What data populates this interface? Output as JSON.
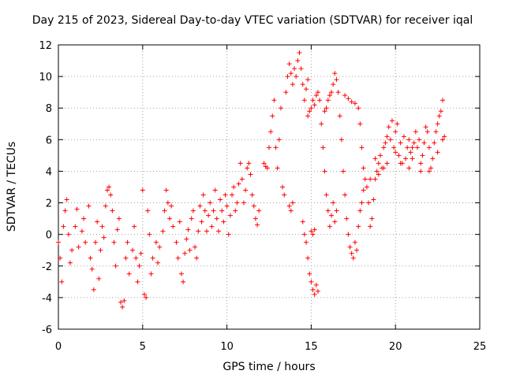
{
  "chart_data": {
    "type": "scatter",
    "title": "Day 215 of 2023, Sidereal Day-to-day VTEC variation (SDTVAR) for receiver iqal",
    "xlabel": "GPS time / hours",
    "ylabel": "SDTVAR / TECUs",
    "xlim": [
      0,
      25
    ],
    "ylim": [
      -6,
      12
    ],
    "xticks": [
      0,
      5,
      10,
      15,
      20,
      25
    ],
    "yticks": [
      -6,
      -4,
      -2,
      0,
      2,
      4,
      6,
      8,
      10,
      12
    ],
    "grid": true,
    "marker": "+",
    "color": "#ff0000",
    "series": [
      {
        "name": "iqal",
        "points": [
          [
            0.0,
            -0.5
          ],
          [
            0.1,
            -1.5
          ],
          [
            0.2,
            -3.0
          ],
          [
            0.3,
            0.5
          ],
          [
            0.4,
            1.5
          ],
          [
            0.5,
            2.2
          ],
          [
            0.6,
            0.0
          ],
          [
            0.7,
            -1.8
          ],
          [
            0.8,
            -1.0
          ],
          [
            1.0,
            0.5
          ],
          [
            1.1,
            1.6
          ],
          [
            1.2,
            -0.8
          ],
          [
            1.4,
            0.2
          ],
          [
            1.5,
            1.0
          ],
          [
            1.6,
            -0.5
          ],
          [
            1.8,
            1.8
          ],
          [
            1.9,
            -1.5
          ],
          [
            2.0,
            -2.2
          ],
          [
            2.1,
            -3.5
          ],
          [
            2.2,
            -0.5
          ],
          [
            2.3,
            0.8
          ],
          [
            2.4,
            -2.8
          ],
          [
            2.5,
            -1.0
          ],
          [
            2.6,
            0.5
          ],
          [
            2.7,
            -0.2
          ],
          [
            2.8,
            1.8
          ],
          [
            2.9,
            2.8
          ],
          [
            3.0,
            3.0
          ],
          [
            3.1,
            2.5
          ],
          [
            3.2,
            1.5
          ],
          [
            3.3,
            -0.5
          ],
          [
            3.4,
            -2.0
          ],
          [
            3.5,
            0.3
          ],
          [
            3.6,
            1.0
          ],
          [
            3.7,
            -4.3
          ],
          [
            3.8,
            -4.6
          ],
          [
            3.9,
            -4.2
          ],
          [
            4.0,
            -1.5
          ],
          [
            4.1,
            -0.5
          ],
          [
            4.2,
            -2.5
          ],
          [
            4.4,
            -1.0
          ],
          [
            4.5,
            0.5
          ],
          [
            4.6,
            -1.5
          ],
          [
            4.7,
            -3.0
          ],
          [
            4.8,
            -2.0
          ],
          [
            4.9,
            -1.2
          ],
          [
            5.0,
            2.8
          ],
          [
            5.1,
            -3.8
          ],
          [
            5.2,
            -4.0
          ],
          [
            5.3,
            1.5
          ],
          [
            5.4,
            0.0
          ],
          [
            5.5,
            -2.5
          ],
          [
            5.6,
            -1.5
          ],
          [
            5.8,
            -0.5
          ],
          [
            5.9,
            -1.8
          ],
          [
            6.0,
            -0.8
          ],
          [
            6.2,
            0.2
          ],
          [
            6.3,
            1.5
          ],
          [
            6.4,
            2.8
          ],
          [
            6.5,
            2.0
          ],
          [
            6.6,
            1.0
          ],
          [
            6.7,
            1.8
          ],
          [
            6.8,
            0.5
          ],
          [
            7.0,
            -0.5
          ],
          [
            7.1,
            -1.5
          ],
          [
            7.2,
            0.8
          ],
          [
            7.3,
            -2.5
          ],
          [
            7.4,
            -3.0
          ],
          [
            7.5,
            -1.2
          ],
          [
            7.6,
            -0.3
          ],
          [
            7.7,
            0.3
          ],
          [
            7.8,
            -1.0
          ],
          [
            7.9,
            1.0
          ],
          [
            8.0,
            1.5
          ],
          [
            8.1,
            -0.8
          ],
          [
            8.2,
            -1.5
          ],
          [
            8.3,
            0.2
          ],
          [
            8.4,
            1.8
          ],
          [
            8.5,
            0.8
          ],
          [
            8.6,
            2.5
          ],
          [
            8.7,
            1.5
          ],
          [
            8.8,
            0.2
          ],
          [
            8.9,
            1.2
          ],
          [
            9.0,
            2.0
          ],
          [
            9.1,
            0.5
          ],
          [
            9.2,
            1.5
          ],
          [
            9.3,
            2.8
          ],
          [
            9.4,
            1.0
          ],
          [
            9.5,
            0.2
          ],
          [
            9.6,
            2.2
          ],
          [
            9.7,
            1.5
          ],
          [
            9.8,
            0.8
          ],
          [
            9.9,
            2.5
          ],
          [
            10.0,
            1.8
          ],
          [
            10.1,
            0.0
          ],
          [
            10.2,
            1.2
          ],
          [
            10.3,
            2.5
          ],
          [
            10.4,
            3.0
          ],
          [
            10.5,
            1.5
          ],
          [
            10.6,
            2.0
          ],
          [
            10.7,
            3.2
          ],
          [
            10.8,
            4.5
          ],
          [
            10.9,
            3.5
          ],
          [
            11.0,
            2.0
          ],
          [
            11.1,
            2.8
          ],
          [
            11.2,
            4.2
          ],
          [
            11.3,
            4.5
          ],
          [
            11.4,
            3.8
          ],
          [
            11.5,
            2.5
          ],
          [
            11.6,
            1.8
          ],
          [
            11.7,
            1.0
          ],
          [
            11.8,
            0.6
          ],
          [
            11.9,
            1.5
          ],
          [
            12.2,
            4.5
          ],
          [
            12.3,
            4.3
          ],
          [
            12.4,
            4.2
          ],
          [
            12.5,
            5.5
          ],
          [
            12.6,
            6.5
          ],
          [
            12.7,
            7.5
          ],
          [
            12.8,
            8.5
          ],
          [
            12.9,
            5.5
          ],
          [
            13.0,
            4.2
          ],
          [
            13.1,
            6.0
          ],
          [
            13.2,
            8.0
          ],
          [
            13.3,
            3.0
          ],
          [
            13.4,
            2.5
          ],
          [
            13.5,
            9.0
          ],
          [
            13.6,
            10.0
          ],
          [
            13.7,
            10.8
          ],
          [
            13.8,
            10.2
          ],
          [
            13.9,
            9.5
          ],
          [
            14.0,
            10.5
          ],
          [
            14.1,
            10.0
          ],
          [
            14.2,
            11.0
          ],
          [
            14.3,
            11.5
          ],
          [
            14.4,
            10.5
          ],
          [
            14.5,
            9.5
          ],
          [
            14.6,
            8.5
          ],
          [
            14.7,
            9.2
          ],
          [
            14.8,
            9.8
          ],
          [
            13.8,
            1.5
          ],
          [
            13.9,
            2.0
          ],
          [
            13.7,
            1.8
          ],
          [
            14.5,
            0.8
          ],
          [
            14.6,
            0.0
          ],
          [
            14.7,
            -0.5
          ],
          [
            14.8,
            -1.5
          ],
          [
            14.9,
            -2.5
          ],
          [
            15.0,
            -3.0
          ],
          [
            15.1,
            -3.5
          ],
          [
            15.2,
            -3.8
          ],
          [
            15.3,
            -3.2
          ],
          [
            15.4,
            -3.6
          ],
          [
            15.0,
            0.2
          ],
          [
            15.1,
            0.0
          ],
          [
            15.2,
            0.3
          ],
          [
            14.8,
            7.5
          ],
          [
            14.9,
            7.8
          ],
          [
            15.0,
            8.0
          ],
          [
            15.1,
            8.5
          ],
          [
            15.2,
            8.2
          ],
          [
            15.3,
            8.8
          ],
          [
            15.4,
            9.0
          ],
          [
            15.5,
            8.5
          ],
          [
            15.6,
            7.0
          ],
          [
            15.7,
            5.5
          ],
          [
            15.8,
            4.0
          ],
          [
            15.9,
            2.5
          ],
          [
            16.0,
            1.5
          ],
          [
            16.1,
            0.5
          ],
          [
            16.2,
            1.2
          ],
          [
            16.3,
            2.0
          ],
          [
            16.4,
            0.8
          ],
          [
            16.5,
            1.5
          ],
          [
            15.8,
            7.8
          ],
          [
            15.9,
            8.0
          ],
          [
            16.0,
            8.5
          ],
          [
            16.1,
            8.8
          ],
          [
            16.2,
            9.0
          ],
          [
            16.3,
            9.5
          ],
          [
            16.4,
            10.2
          ],
          [
            16.5,
            9.8
          ],
          [
            16.6,
            9.0
          ],
          [
            16.7,
            7.5
          ],
          [
            16.8,
            6.0
          ],
          [
            16.9,
            4.0
          ],
          [
            17.0,
            2.5
          ],
          [
            17.1,
            1.0
          ],
          [
            17.2,
            0.0
          ],
          [
            17.3,
            -0.8
          ],
          [
            17.4,
            -1.2
          ],
          [
            17.5,
            -1.5
          ],
          [
            17.6,
            -0.5
          ],
          [
            17.7,
            -1.0
          ],
          [
            17.8,
            0.5
          ],
          [
            17.9,
            1.5
          ],
          [
            18.0,
            2.0
          ],
          [
            18.1,
            2.8
          ],
          [
            17.0,
            8.8
          ],
          [
            17.2,
            8.6
          ],
          [
            17.4,
            8.4
          ],
          [
            17.6,
            8.3
          ],
          [
            17.8,
            8.0
          ],
          [
            17.9,
            7.0
          ],
          [
            18.0,
            5.5
          ],
          [
            18.1,
            4.2
          ],
          [
            18.2,
            3.5
          ],
          [
            18.3,
            3.0
          ],
          [
            18.4,
            2.0
          ],
          [
            18.5,
            0.5
          ],
          [
            18.6,
            1.0
          ],
          [
            18.7,
            2.2
          ],
          [
            18.8,
            3.5
          ],
          [
            18.9,
            4.0
          ],
          [
            19.0,
            4.5
          ],
          [
            19.1,
            5.0
          ],
          [
            19.2,
            4.2
          ],
          [
            19.3,
            5.5
          ],
          [
            19.4,
            5.8
          ],
          [
            19.5,
            6.2
          ],
          [
            19.6,
            6.8
          ],
          [
            19.7,
            6.0
          ],
          [
            19.8,
            7.2
          ],
          [
            19.9,
            5.5
          ],
          [
            20.0,
            6.5
          ],
          [
            20.1,
            7.0
          ],
          [
            20.2,
            5.0
          ],
          [
            20.3,
            5.8
          ],
          [
            20.4,
            4.5
          ],
          [
            20.5,
            6.2
          ],
          [
            20.6,
            4.8
          ],
          [
            20.7,
            5.5
          ],
          [
            20.8,
            6.0
          ],
          [
            20.9,
            5.2
          ],
          [
            21.0,
            4.8
          ],
          [
            21.1,
            5.8
          ],
          [
            21.2,
            6.5
          ],
          [
            21.3,
            5.5
          ],
          [
            21.4,
            6.0
          ],
          [
            21.5,
            4.5
          ],
          [
            21.6,
            5.0
          ],
          [
            21.7,
            5.8
          ],
          [
            21.8,
            6.8
          ],
          [
            21.9,
            6.5
          ],
          [
            22.0,
            5.5
          ],
          [
            22.1,
            4.2
          ],
          [
            22.2,
            4.8
          ],
          [
            22.3,
            5.8
          ],
          [
            22.4,
            6.5
          ],
          [
            22.5,
            7.0
          ],
          [
            22.6,
            7.5
          ],
          [
            22.7,
            7.8
          ],
          [
            22.8,
            8.5
          ],
          [
            22.9,
            6.2
          ],
          [
            18.5,
            3.5
          ],
          [
            18.8,
            4.8
          ],
          [
            19.0,
            3.8
          ],
          [
            19.3,
            4.2
          ],
          [
            19.5,
            4.5
          ],
          [
            20.0,
            5.2
          ],
          [
            20.3,
            4.5
          ],
          [
            20.8,
            4.2
          ],
          [
            21.0,
            5.5
          ],
          [
            21.5,
            4.0
          ],
          [
            22.0,
            4.0
          ],
          [
            22.5,
            5.2
          ],
          [
            22.8,
            6.0
          ]
        ]
      }
    ]
  }
}
